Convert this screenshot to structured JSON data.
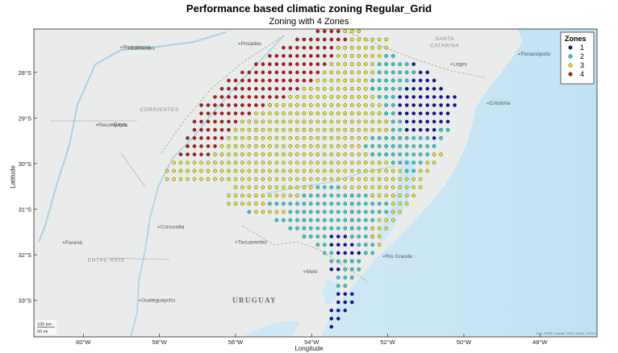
{
  "title": "Performance based climatic zoning Regular_Grid",
  "subtitle": "Zoning with 4 Zones",
  "xlabel": "Longitude",
  "ylabel": "Latitude",
  "xticks": [
    {
      "value": -60,
      "label": "60°W"
    },
    {
      "value": -58,
      "label": "58°W"
    },
    {
      "value": -56,
      "label": "56°W"
    },
    {
      "value": -54,
      "label": "54°W"
    },
    {
      "value": -52,
      "label": "52°W"
    },
    {
      "value": -50,
      "label": "50°W"
    },
    {
      "value": -48,
      "label": "48°W"
    }
  ],
  "yticks": [
    {
      "value": -28,
      "label": "28°S"
    },
    {
      "value": -29,
      "label": "29°S"
    },
    {
      "value": -30,
      "label": "30°S"
    },
    {
      "value": -31,
      "label": "31°S"
    },
    {
      "value": -32,
      "label": "32°S"
    },
    {
      "value": -33,
      "label": "33°S"
    }
  ],
  "legend": {
    "title": "Zones",
    "entries": [
      {
        "label": "1",
        "color": "#0b0bb4"
      },
      {
        "label": "2",
        "color": "#1fd6d6"
      },
      {
        "label": "3",
        "color": "#e6e61e"
      },
      {
        "label": "4",
        "color": "#c01515"
      }
    ]
  },
  "places": [
    {
      "name": "Resistencia",
      "lon": -59.0,
      "lat": -27.45
    },
    {
      "name": "Corrientes",
      "lon": -58.8,
      "lat": -27.47
    },
    {
      "name": "Posadas",
      "lon": -55.9,
      "lat": -27.37
    },
    {
      "name": "Reconquista",
      "lon": -59.65,
      "lat": -29.15
    },
    {
      "name": "Goya",
      "lon": -59.25,
      "lat": -29.14
    },
    {
      "name": "Concordia",
      "lon": -58.02,
      "lat": -31.39
    },
    {
      "name": "Paraná",
      "lon": -60.52,
      "lat": -31.73
    },
    {
      "name": "Gualeguaychú",
      "lon": -58.52,
      "lat": -33.0
    },
    {
      "name": "Tacuarembó",
      "lon": -55.98,
      "lat": -31.72
    },
    {
      "name": "Melo",
      "lon": -54.19,
      "lat": -32.37
    },
    {
      "name": "Rio Grande",
      "lon": -52.1,
      "lat": -32.03
    },
    {
      "name": "Lages",
      "lon": -50.33,
      "lat": -27.82
    },
    {
      "name": "Florianópolis",
      "lon": -48.55,
      "lat": -27.6
    },
    {
      "name": "Criciúma",
      "lon": -49.37,
      "lat": -28.68
    }
  ],
  "regions": [
    {
      "name": "CORRIENTES",
      "lon": -58.0,
      "lat": -28.85
    },
    {
      "name": "ENTRE RÍOS",
      "lon": -59.4,
      "lat": -32.15
    },
    {
      "name": "SANTA",
      "lon": -50.5,
      "lat": -27.3
    },
    {
      "name": "CATARINA",
      "lon": -50.5,
      "lat": -27.45
    }
  ],
  "country": {
    "name": "URUGUAY",
    "lon": -55.5,
    "lat": -33.05
  },
  "scalebar": {
    "km": "100 km",
    "mi": "50 mi"
  },
  "attribution": "Esri, HERE, Garmin, FAO, NOAA, USGS",
  "chart_data": {
    "type": "scatter",
    "title": "Performance based climatic zoning Regular_Grid",
    "subtitle": "Zoning with 4 Zones",
    "xlabel": "Longitude",
    "ylabel": "Latitude",
    "xlim": [
      -61.3,
      -46.5
    ],
    "ylim": [
      -33.8,
      -27.05
    ],
    "grid_spacing_deg": 0.18,
    "grid_origin": {
      "lon": -53.3,
      "lat": -27.1
    },
    "legend_position": "top-right",
    "zone_rows": [
      {
        "lat": -27.1,
        "segments": [
          [
            -54.0,
            -53.2,
            4
          ],
          [
            -53.2,
            -52.6,
            3
          ]
        ]
      },
      {
        "lat": -27.28,
        "segments": [
          [
            -54.4,
            -53.1,
            4
          ],
          [
            -53.1,
            -52.0,
            3
          ]
        ]
      },
      {
        "lat": -27.46,
        "segments": [
          [
            -54.8,
            -53.3,
            4
          ],
          [
            -53.3,
            -52.0,
            3
          ],
          [
            -52.0,
            -51.9,
            2
          ]
        ]
      },
      {
        "lat": -27.64,
        "segments": [
          [
            -55.2,
            -53.4,
            4
          ],
          [
            -53.4,
            -52.2,
            3
          ],
          [
            -52.2,
            -51.7,
            2
          ]
        ]
      },
      {
        "lat": -27.82,
        "segments": [
          [
            -55.6,
            -53.6,
            4
          ],
          [
            -53.6,
            -52.3,
            3
          ],
          [
            -52.3,
            -51.4,
            2
          ],
          [
            -51.4,
            -51.2,
            1
          ]
        ]
      },
      {
        "lat": -28.0,
        "segments": [
          [
            -55.9,
            -53.7,
            4
          ],
          [
            -53.7,
            -52.3,
            3
          ],
          [
            -52.3,
            -51.3,
            2
          ],
          [
            -51.3,
            -50.9,
            1
          ]
        ]
      },
      {
        "lat": -28.18,
        "segments": [
          [
            -56.2,
            -54.0,
            4
          ],
          [
            -54.0,
            -52.4,
            3
          ],
          [
            -52.4,
            -51.4,
            2
          ],
          [
            -51.4,
            -50.7,
            1
          ]
        ]
      },
      {
        "lat": -28.36,
        "segments": [
          [
            -56.5,
            -54.3,
            4
          ],
          [
            -54.3,
            -52.4,
            3
          ],
          [
            -52.4,
            -51.6,
            2
          ],
          [
            -51.6,
            -50.6,
            1
          ]
        ]
      },
      {
        "lat": -28.54,
        "segments": [
          [
            -56.7,
            -54.6,
            4
          ],
          [
            -54.6,
            -52.3,
            3
          ],
          [
            -52.3,
            -51.8,
            2
          ],
          [
            -51.8,
            -50.1,
            1
          ]
        ]
      },
      {
        "lat": -28.72,
        "segments": [
          [
            -56.9,
            -55.1,
            4
          ],
          [
            -55.1,
            -52.2,
            3
          ],
          [
            -52.2,
            -51.8,
            2
          ],
          [
            -51.8,
            -50.2,
            1
          ]
        ]
      },
      {
        "lat": -28.9,
        "segments": [
          [
            -57.0,
            -55.6,
            4
          ],
          [
            -55.6,
            -52.1,
            3
          ],
          [
            -52.1,
            -51.8,
            2
          ],
          [
            -51.8,
            -50.3,
            1
          ]
        ]
      },
      {
        "lat": -29.08,
        "segments": [
          [
            -57.1,
            -55.9,
            4
          ],
          [
            -55.9,
            -52.0,
            3
          ],
          [
            -52.0,
            -51.6,
            2
          ],
          [
            -51.6,
            -50.4,
            1
          ],
          [
            -50.4,
            -50.3,
            2
          ]
        ]
      },
      {
        "lat": -29.26,
        "segments": [
          [
            -57.2,
            -56.1,
            4
          ],
          [
            -56.1,
            -52.0,
            3
          ],
          [
            -52.0,
            -51.5,
            2
          ],
          [
            -51.5,
            -50.6,
            1
          ],
          [
            -50.6,
            -50.4,
            2
          ]
        ]
      },
      {
        "lat": -29.44,
        "segments": [
          [
            -57.3,
            -56.3,
            4
          ],
          [
            -56.3,
            -52.5,
            3
          ],
          [
            -52.5,
            -50.9,
            2
          ],
          [
            -50.9,
            -50.7,
            1
          ],
          [
            -50.7,
            -50.5,
            2
          ]
        ]
      },
      {
        "lat": -29.62,
        "segments": [
          [
            -57.4,
            -56.5,
            4
          ],
          [
            -56.5,
            -52.6,
            3
          ],
          [
            -52.6,
            -50.7,
            2
          ]
        ]
      },
      {
        "lat": -29.8,
        "segments": [
          [
            -57.5,
            -56.7,
            4
          ],
          [
            -56.7,
            -52.4,
            3
          ],
          [
            -52.4,
            -50.9,
            2
          ],
          [
            -50.9,
            -50.6,
            3
          ]
        ]
      },
      {
        "lat": -29.98,
        "segments": [
          [
            -57.7,
            -56.2,
            3
          ],
          [
            -56.2,
            -51.9,
            3
          ],
          [
            -51.9,
            -51.0,
            2
          ],
          [
            -51.0,
            -50.7,
            3
          ]
        ]
      },
      {
        "lat": -30.16,
        "segments": [
          [
            -57.9,
            -51.6,
            3
          ],
          [
            -51.6,
            -51.2,
            2
          ],
          [
            -51.2,
            -50.8,
            3
          ]
        ]
      },
      {
        "lat": -30.34,
        "segments": [
          [
            -57.9,
            -51.0,
            3
          ]
        ]
      },
      {
        "lat": -30.52,
        "segments": [
          [
            -56.0,
            -54.0,
            3
          ],
          [
            -54.0,
            -53.2,
            2
          ],
          [
            -53.2,
            -51.1,
            3
          ]
        ]
      },
      {
        "lat": -30.7,
        "segments": [
          [
            -56.2,
            -54.3,
            3
          ],
          [
            -54.3,
            -52.4,
            2
          ],
          [
            -52.4,
            -51.3,
            3
          ]
        ]
      },
      {
        "lat": -30.88,
        "segments": [
          [
            -56.3,
            -55.7,
            3
          ],
          [
            -55.7,
            -55.2,
            3
          ],
          [
            -55.2,
            -52.0,
            2
          ],
          [
            -52.0,
            -51.5,
            3
          ]
        ]
      },
      {
        "lat": -31.06,
        "segments": [
          [
            -55.8,
            -55.5,
            2
          ],
          [
            -55.5,
            -54.7,
            3
          ],
          [
            -54.7,
            -52.0,
            2
          ],
          [
            -52.0,
            -51.6,
            3
          ]
        ]
      },
      {
        "lat": -31.24,
        "segments": [
          [
            -55.0,
            -52.3,
            2
          ],
          [
            -52.3,
            -51.8,
            3
          ]
        ]
      },
      {
        "lat": -31.42,
        "segments": [
          [
            -54.6,
            -52.4,
            2
          ],
          [
            -52.4,
            -51.9,
            3
          ]
        ]
      },
      {
        "lat": -31.6,
        "segments": [
          [
            -54.2,
            -53.6,
            2
          ],
          [
            -53.6,
            -53.0,
            1
          ],
          [
            -53.0,
            -52.4,
            2
          ],
          [
            -52.4,
            -52.1,
            3
          ]
        ]
      },
      {
        "lat": -31.78,
        "segments": [
          [
            -54.0,
            -53.5,
            2
          ],
          [
            -53.5,
            -52.9,
            1
          ],
          [
            -52.9,
            -52.3,
            2
          ],
          [
            -52.3,
            -52.2,
            3
          ]
        ]
      },
      {
        "lat": -31.96,
        "segments": [
          [
            -53.8,
            -53.4,
            2
          ],
          [
            -53.4,
            -52.7,
            1
          ],
          [
            -52.7,
            -52.3,
            2
          ]
        ]
      },
      {
        "lat": -32.14,
        "segments": [
          [
            -53.6,
            -52.6,
            2
          ]
        ]
      },
      {
        "lat": -32.32,
        "segments": [
          [
            -53.5,
            -53.2,
            1
          ],
          [
            -53.2,
            -52.7,
            2
          ]
        ]
      },
      {
        "lat": -32.5,
        "segments": [
          [
            -53.4,
            -52.9,
            2
          ]
        ]
      },
      {
        "lat": -32.68,
        "segments": [
          [
            -53.3,
            -53.0,
            2
          ]
        ]
      },
      {
        "lat": -32.86,
        "segments": [
          [
            -53.3,
            -52.8,
            1
          ]
        ]
      },
      {
        "lat": -33.04,
        "segments": [
          [
            -53.4,
            -52.9,
            1
          ]
        ]
      },
      {
        "lat": -33.22,
        "segments": [
          [
            -53.5,
            -53.1,
            1
          ]
        ]
      },
      {
        "lat": -33.4,
        "segments": [
          [
            -53.6,
            -53.3,
            1
          ]
        ]
      },
      {
        "lat": -33.58,
        "segments": [
          [
            -53.6,
            -53.4,
            1
          ]
        ]
      }
    ]
  }
}
